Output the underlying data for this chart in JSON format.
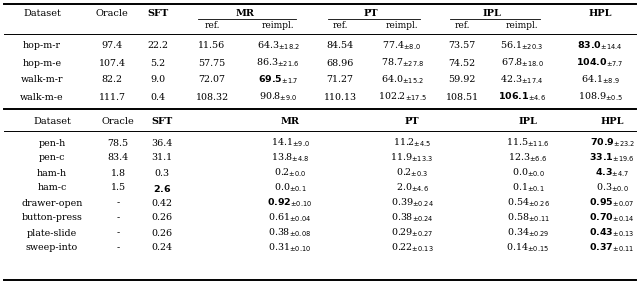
{
  "table1_rows": [
    [
      "hop-m-r",
      "97.4",
      "22.2",
      "11.56",
      "64.3_{\\pm18.2}",
      "84.54",
      "77.4_{\\pm8.0}",
      "73.57",
      "56.1_{\\pm20.3}",
      "\\mathbf{83.0}_{\\pm14.4}"
    ],
    [
      "hop-m-e",
      "107.4",
      "5.2",
      "57.75",
      "86.3_{\\pm21.6}",
      "68.96",
      "78.7_{\\pm27.8}",
      "74.52",
      "67.8_{\\pm18.0}",
      "\\mathbf{104.0}_{\\pm7.7}"
    ],
    [
      "walk-m-r",
      "82.2",
      "9.0",
      "72.07",
      "\\mathbf{69.5}_{\\pm1.7}",
      "71.27",
      "64.0_{\\pm15.2}",
      "59.92",
      "42.3_{\\pm17.4}",
      "64.1_{\\pm8.9}"
    ],
    [
      "walk-m-e",
      "111.7",
      "0.4",
      "108.32",
      "90.8_{\\pm9.0}",
      "110.13",
      "102.2_{\\pm17.5}",
      "108.51",
      "\\mathbf{106.1}_{\\pm4.6}",
      "108.9_{\\pm0.5}"
    ]
  ],
  "table2_rows": [
    [
      "pen-h",
      "78.5",
      "36.4",
      "14.1_{\\pm9.0}",
      "11.2_{\\pm4.5}",
      "11.5_{\\pm11.6}",
      "\\mathbf{70.9}_{\\pm23.2}"
    ],
    [
      "pen-c",
      "83.4",
      "31.1",
      "13.8_{\\pm4.8}",
      "11.9_{\\pm13.3}",
      "12.3_{\\pm6.6}",
      "\\mathbf{33.1}_{\\pm19.6}"
    ],
    [
      "ham-h",
      "1.8",
      "0.3",
      "0.2_{\\pm0.0}",
      "0.2_{\\pm0.3}",
      "0.0_{\\pm0.0}",
      "\\mathbf{4.3}_{\\pm4.7}"
    ],
    [
      "ham-c",
      "1.5",
      "\\mathbf{2.6}",
      "0.0_{\\pm0.1}",
      "2.0_{\\pm4.6}",
      "0.1_{\\pm0.1}",
      "0.3_{\\pm0.0}"
    ],
    [
      "drawer-open",
      "-",
      "0.42",
      "\\mathbf{0.92}_{\\pm0.10}",
      "0.39_{\\pm0.24}",
      "0.54_{\\pm0.26}",
      "\\mathbf{0.95}_{\\pm0.07}"
    ],
    [
      "button-press",
      "-",
      "0.26",
      "0.61_{\\pm0.04}",
      "0.38_{\\pm0.24}",
      "0.58_{\\pm0.11}",
      "\\mathbf{0.70}_{\\pm0.14}"
    ],
    [
      "plate-slide",
      "-",
      "0.26",
      "0.38_{\\pm0.08}",
      "0.29_{\\pm0.27}",
      "0.34_{\\pm0.29}",
      "\\mathbf{0.43}_{\\pm0.13}"
    ],
    [
      "sweep-into",
      "-",
      "0.24",
      "0.31_{\\pm0.10}",
      "0.22_{\\pm0.13}",
      "0.14_{\\pm0.15}",
      "\\mathbf{0.37}_{\\pm0.11}"
    ]
  ]
}
